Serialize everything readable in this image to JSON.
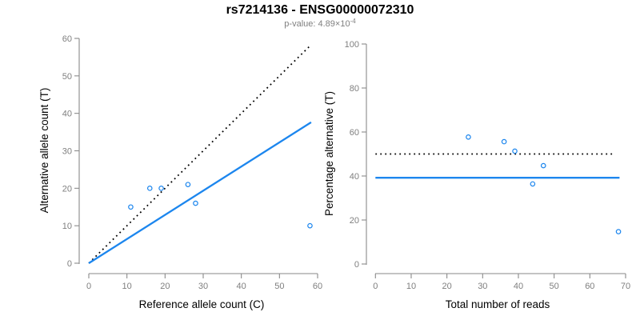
{
  "colors": {
    "accent_blue": "#1C86EE",
    "line_black": "#000000",
    "axis_gray": "#8a8a8a",
    "tick_text_gray": "#7f7f7f",
    "title_black": "#000000",
    "subtitle_gray": "#7f7f7f"
  },
  "chart_data": {
    "figure_title": "rs7214136 - ENSG00000072310",
    "subtitle_prefix": "p-value: 4.89×10",
    "subtitle_exponent": "-4",
    "plots": [
      {
        "type": "scatter",
        "name": "allele-count-scatter",
        "xlabel": "Reference allele count (C)",
        "ylabel": "Alternative allele count (T)",
        "xlim": [
          0,
          60
        ],
        "ylim": [
          0,
          60
        ],
        "xticks": [
          0,
          10,
          20,
          30,
          40,
          50,
          60
        ],
        "yticks": [
          0,
          10,
          20,
          30,
          40,
          50,
          60
        ],
        "grid": false,
        "points": [
          [
            11,
            15
          ],
          [
            16,
            20
          ],
          [
            19,
            20
          ],
          [
            26,
            21
          ],
          [
            28,
            16
          ],
          [
            58,
            10
          ]
        ],
        "lines": [
          {
            "name": "expected-1to1-line",
            "style": "dotted",
            "color": "#000000",
            "x1": 0,
            "y1": 0,
            "x2": 58.2,
            "y2": 58.2
          },
          {
            "name": "fitted-allele-ratio-line",
            "style": "solid",
            "color": "#1C86EE",
            "x1": 0,
            "y1": 0,
            "x2": 58.3,
            "y2": 37.6
          }
        ]
      },
      {
        "type": "scatter",
        "name": "percentage-scatter",
        "xlabel": "Total number of reads",
        "ylabel": "Percentage alternative (T)",
        "xlim": [
          0,
          70
        ],
        "ylim": [
          0,
          100
        ],
        "xticks": [
          0,
          10,
          20,
          30,
          40,
          50,
          60,
          70
        ],
        "yticks": [
          0,
          20,
          40,
          60,
          80,
          100
        ],
        "grid": false,
        "points": [
          [
            26,
            57.7
          ],
          [
            36,
            55.6
          ],
          [
            39,
            51.3
          ],
          [
            44,
            36.4
          ],
          [
            47,
            44.7
          ],
          [
            68,
            14.7
          ]
        ],
        "lines": [
          {
            "name": "expected-50-percent-line",
            "style": "dotted",
            "color": "#000000",
            "x1": 0,
            "y1": 50,
            "x2": 67,
            "y2": 50
          },
          {
            "name": "mean-percentage-line",
            "style": "solid",
            "color": "#1C86EE",
            "x1": 0,
            "y1": 39.2,
            "x2": 68.3,
            "y2": 39.2
          }
        ]
      }
    ]
  }
}
